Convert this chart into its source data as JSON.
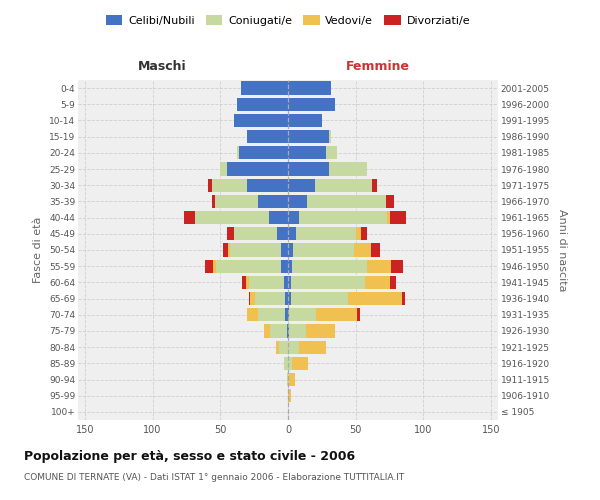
{
  "age_groups": [
    "100+",
    "95-99",
    "90-94",
    "85-89",
    "80-84",
    "75-79",
    "70-74",
    "65-69",
    "60-64",
    "55-59",
    "50-54",
    "45-49",
    "40-44",
    "35-39",
    "30-34",
    "25-29",
    "20-24",
    "15-19",
    "10-14",
    "5-9",
    "0-4"
  ],
  "birth_years": [
    "≤ 1905",
    "1906-1910",
    "1911-1915",
    "1916-1920",
    "1921-1925",
    "1926-1930",
    "1931-1935",
    "1936-1940",
    "1941-1945",
    "1946-1950",
    "1951-1955",
    "1956-1960",
    "1961-1965",
    "1966-1970",
    "1971-1975",
    "1976-1980",
    "1981-1985",
    "1986-1990",
    "1991-1995",
    "1996-2000",
    "2001-2005"
  ],
  "males_celibi": [
    0,
    0,
    0,
    0,
    0,
    1,
    2,
    2,
    3,
    5,
    5,
    8,
    14,
    22,
    30,
    45,
    36,
    30,
    40,
    38,
    35
  ],
  "males_coniugati": [
    0,
    0,
    1,
    3,
    7,
    12,
    20,
    22,
    26,
    48,
    38,
    32,
    55,
    32,
    26,
    5,
    2,
    0,
    0,
    0,
    0
  ],
  "males_vedovi": [
    0,
    0,
    0,
    0,
    2,
    5,
    8,
    4,
    2,
    2,
    1,
    0,
    0,
    0,
    0,
    0,
    0,
    0,
    0,
    0,
    0
  ],
  "males_divorziati": [
    0,
    0,
    0,
    0,
    0,
    0,
    0,
    1,
    3,
    6,
    4,
    5,
    8,
    2,
    3,
    0,
    0,
    0,
    0,
    0,
    0
  ],
  "females_nubili": [
    0,
    0,
    0,
    0,
    0,
    1,
    1,
    2,
    2,
    3,
    4,
    6,
    8,
    14,
    20,
    30,
    28,
    30,
    25,
    35,
    32
  ],
  "females_coniugate": [
    0,
    0,
    1,
    3,
    8,
    12,
    20,
    42,
    55,
    55,
    45,
    44,
    65,
    58,
    42,
    28,
    8,
    2,
    0,
    0,
    0
  ],
  "females_vedove": [
    0,
    2,
    4,
    12,
    20,
    22,
    30,
    40,
    18,
    18,
    12,
    4,
    2,
    0,
    0,
    0,
    0,
    0,
    0,
    0,
    0
  ],
  "females_divorziate": [
    0,
    0,
    0,
    0,
    0,
    0,
    2,
    2,
    5,
    9,
    7,
    4,
    12,
    6,
    4,
    0,
    0,
    0,
    0,
    0,
    0
  ],
  "color_celibi": "#4472c4",
  "color_coniugati": "#c5d9a0",
  "color_vedovi": "#f0c050",
  "color_divorziati": "#cc2222",
  "legend_labels": [
    "Celibi/Nubili",
    "Coniugati/e",
    "Vedovi/e",
    "Divorziati/e"
  ],
  "title": "Popolazione per età, sesso e stato civile - 2006",
  "subtitle": "COMUNE DI TERNATE (VA) - Dati ISTAT 1° gennaio 2006 - Elaborazione TUTTITALIA.IT",
  "label_maschi": "Maschi",
  "label_femmine": "Femmine",
  "label_fasce": "Fasce di età",
  "label_anni": "Anni di nascita",
  "xlim": 155,
  "bg_color": "#ffffff",
  "plot_bg": "#efefef",
  "grid_color": "#cccccc"
}
